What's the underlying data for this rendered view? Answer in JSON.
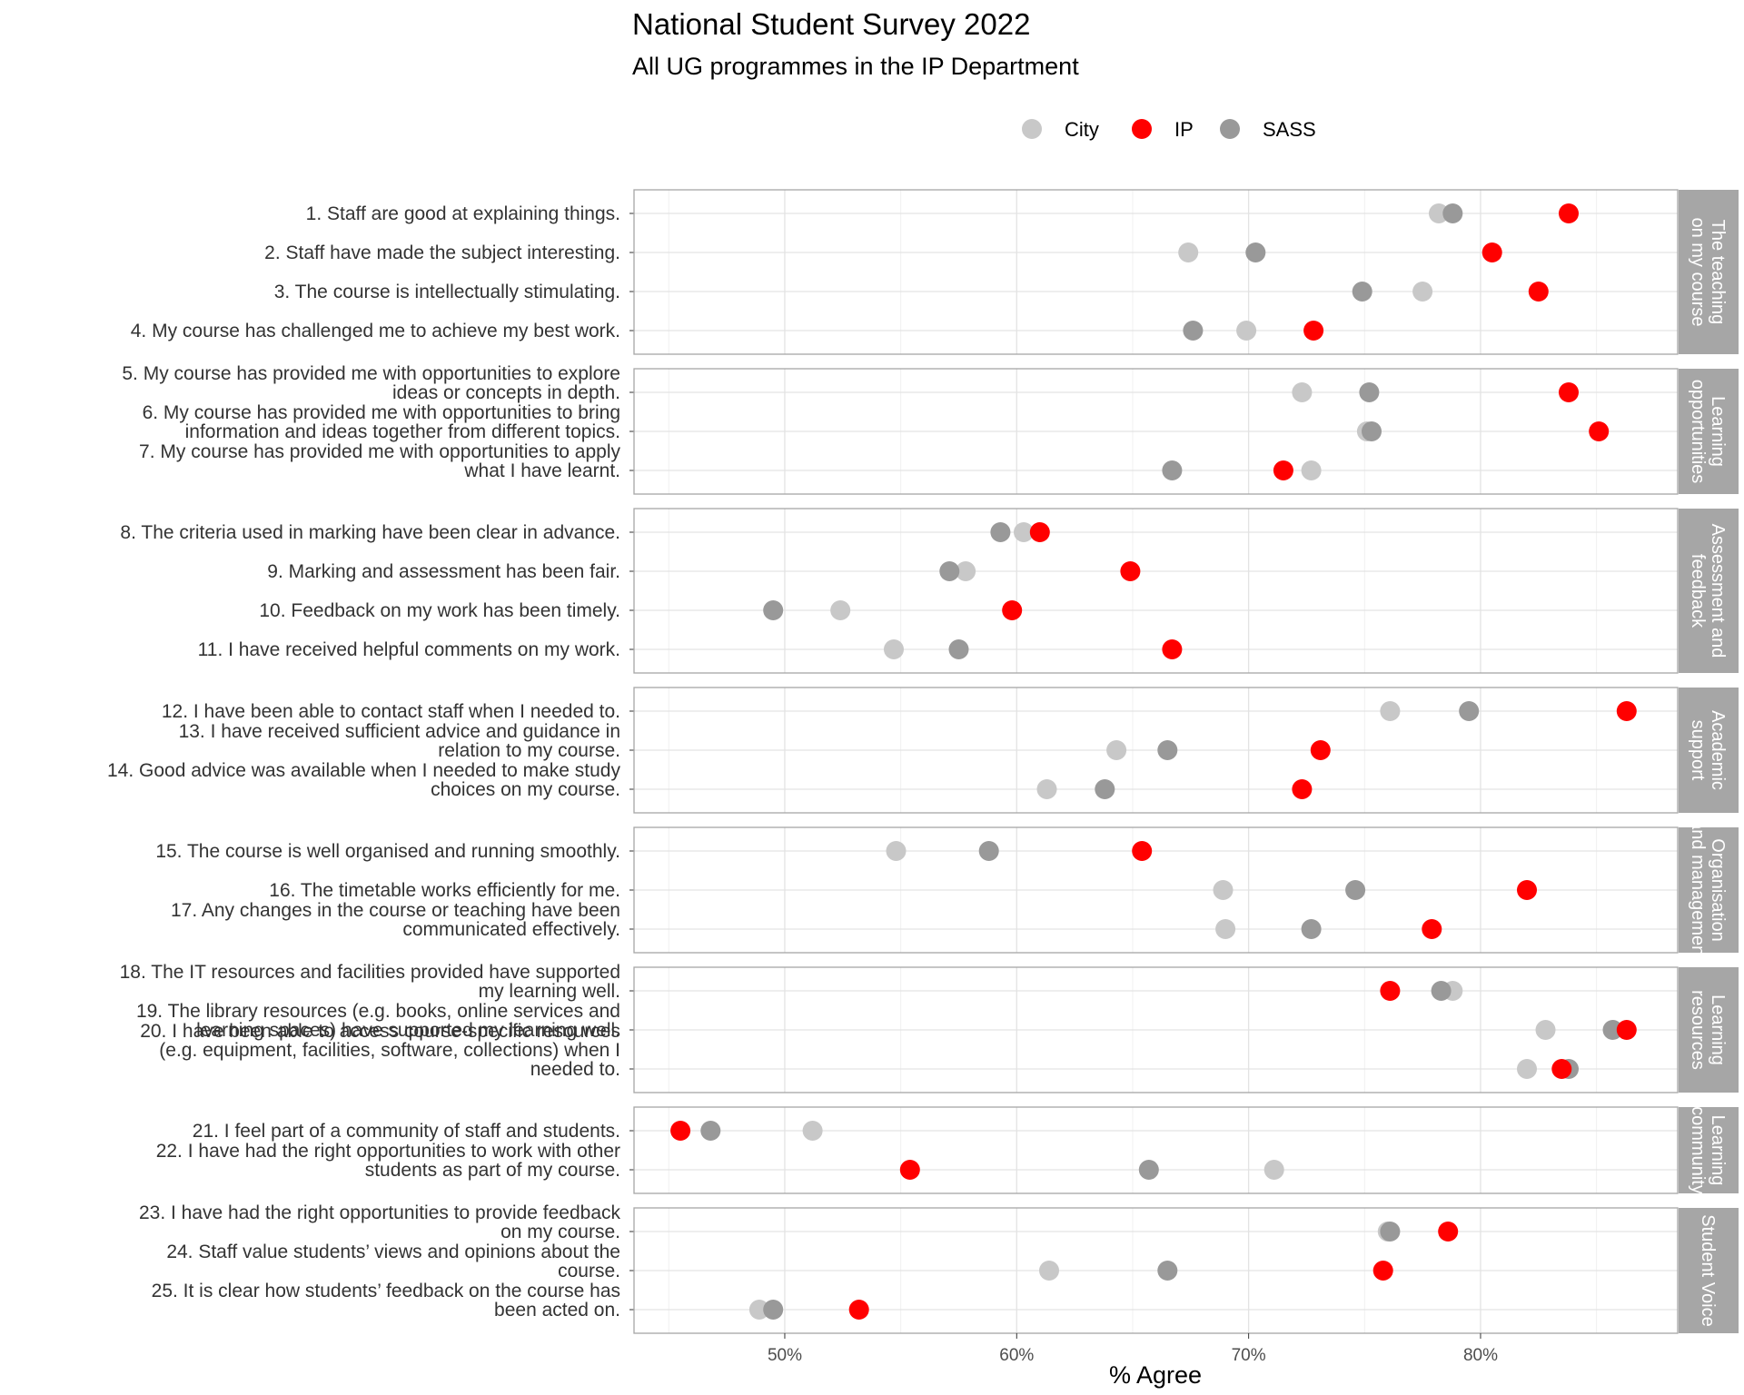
{
  "chart_data": {
    "type": "scatter",
    "title": "National Student Survey 2022",
    "subtitle": "All UG programmes in the IP Department",
    "xlabel": "% Agree",
    "xlim": [
      43.5,
      88.5
    ],
    "xticks": [
      {
        "value": 50,
        "label": "50%"
      },
      {
        "value": 60,
        "label": "60%"
      },
      {
        "value": 70,
        "label": "70%"
      },
      {
        "value": 80,
        "label": "80%"
      }
    ],
    "grid": true,
    "legend_position": "top",
    "series_order": [
      "City",
      "IP",
      "SASS"
    ],
    "series_colors": {
      "City": "#c8c8c8",
      "IP": "#ff0000",
      "SASS": "#999999"
    },
    "draw_order": [
      "City",
      "SASS",
      "IP"
    ],
    "legend": [
      {
        "name": "City",
        "color": "#c8c8c8"
      },
      {
        "name": "IP",
        "color": "#ff0000"
      },
      {
        "name": "SASS",
        "color": "#999999"
      }
    ],
    "panels": [
      {
        "strip": [
          "The teaching",
          "on my course"
        ],
        "questions": [
          {
            "label": [
              "1. Staff are good at explaining things."
            ],
            "City": 78.2,
            "IP": 83.8,
            "SASS": 78.8
          },
          {
            "label": [
              "2. Staff have made the subject interesting."
            ],
            "City": 67.4,
            "IP": 80.5,
            "SASS": 70.3
          },
          {
            "label": [
              "3. The course is intellectually stimulating."
            ],
            "City": 77.5,
            "IP": 82.5,
            "SASS": 74.9
          },
          {
            "label": [
              "4. My course has challenged me to achieve my best work."
            ],
            "City": 69.9,
            "IP": 72.8,
            "SASS": 67.6
          }
        ]
      },
      {
        "strip": [
          "Learning",
          "opportunities"
        ],
        "questions": [
          {
            "label": [
              "5. My course has provided me with opportunities to explore",
              "ideas or concepts in depth."
            ],
            "City": 72.3,
            "IP": 83.8,
            "SASS": 75.2
          },
          {
            "label": [
              "6. My course has provided me with opportunities to bring",
              "information and ideas together from different topics."
            ],
            "City": 75.1,
            "IP": 85.1,
            "SASS": 75.3
          },
          {
            "label": [
              "7. My course has provided me with opportunities to apply",
              "what I have learnt."
            ],
            "City": 72.7,
            "IP": 71.5,
            "SASS": 66.7
          }
        ]
      },
      {
        "strip": [
          "Assessment and",
          "feedback"
        ],
        "questions": [
          {
            "label": [
              "8. The criteria used in marking have been clear in advance."
            ],
            "City": 60.3,
            "IP": 61.0,
            "SASS": 59.3
          },
          {
            "label": [
              "9. Marking and assessment has been fair."
            ],
            "City": 57.8,
            "IP": 64.9,
            "SASS": 57.1
          },
          {
            "label": [
              "10. Feedback on my work has been timely."
            ],
            "City": 52.4,
            "IP": 59.8,
            "SASS": 49.5
          },
          {
            "label": [
              "11. I have received helpful comments on my work."
            ],
            "City": 54.7,
            "IP": 66.7,
            "SASS": 57.5
          }
        ]
      },
      {
        "strip": [
          "Academic",
          "support"
        ],
        "questions": [
          {
            "label": [
              "12. I have been able to contact staff when I needed to."
            ],
            "City": 76.1,
            "IP": 86.3,
            "SASS": 79.5
          },
          {
            "label": [
              "13. I have received sufficient advice and guidance in",
              "relation to my course."
            ],
            "City": 64.3,
            "IP": 73.1,
            "SASS": 66.5
          },
          {
            "label": [
              "14. Good advice was available when I needed to make study",
              "choices on my course."
            ],
            "City": 61.3,
            "IP": 72.3,
            "SASS": 63.8
          }
        ]
      },
      {
        "strip": [
          "Organisation",
          "and management"
        ],
        "questions": [
          {
            "label": [
              "15. The course is well organised and running smoothly."
            ],
            "City": 54.8,
            "IP": 65.4,
            "SASS": 58.8
          },
          {
            "label": [
              "16. The timetable works efficiently for me."
            ],
            "City": 68.9,
            "IP": 82.0,
            "SASS": 74.6
          },
          {
            "label": [
              "17. Any changes in the course or teaching have been",
              "communicated effectively."
            ],
            "City": 69.0,
            "IP": 77.9,
            "SASS": 72.7
          }
        ]
      },
      {
        "strip": [
          "Learning",
          "resources"
        ],
        "questions": [
          {
            "label": [
              "18. The IT resources and facilities provided have supported",
              "my learning well."
            ],
            "City": 78.8,
            "IP": 76.1,
            "SASS": 78.3
          },
          {
            "label": [
              "19. The library resources (e.g. books, online services and",
              "learning spaces) have supported my learning well."
            ],
            "City": 82.8,
            "IP": 86.3,
            "SASS": 85.7
          },
          {
            "label": [
              "20. I have been able to access course-specific resources",
              "(e.g. equipment, facilities, software, collections) when I",
              "needed to."
            ],
            "City": 82.0,
            "IP": 83.5,
            "SASS": 83.8
          }
        ]
      },
      {
        "strip": [
          "Learning",
          "community"
        ],
        "questions": [
          {
            "label": [
              "21. I feel part of a community of staff and students."
            ],
            "City": 51.2,
            "IP": 45.5,
            "SASS": 46.8
          },
          {
            "label": [
              "22. I have had the right opportunities to work with other",
              "students as part of my course."
            ],
            "City": 71.1,
            "IP": 55.4,
            "SASS": 65.7
          }
        ]
      },
      {
        "strip": [
          "Student Voice"
        ],
        "questions": [
          {
            "label": [
              "23. I have had the right opportunities to provide feedback",
              "on my course."
            ],
            "City": 76.0,
            "IP": 78.6,
            "SASS": 76.1
          },
          {
            "label": [
              "24. Staff value students’ views and opinions about the",
              "course."
            ],
            "City": 61.4,
            "IP": 75.8,
            "SASS": 66.5
          },
          {
            "label": [
              "25. It is clear how students’ feedback on the course has",
              "been acted on."
            ],
            "City": 48.9,
            "IP": 53.2,
            "SASS": 49.5
          }
        ]
      }
    ]
  }
}
